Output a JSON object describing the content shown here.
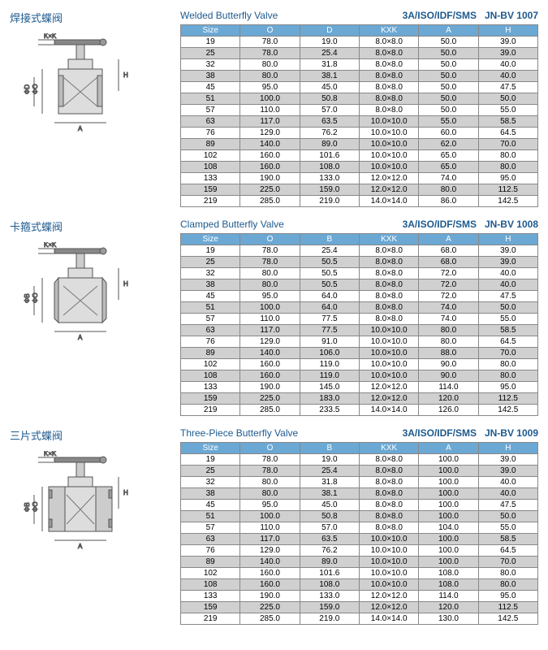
{
  "sections": [
    {
      "cn_title": "焊接式蝶阀",
      "en_title": "Welded Butterfly Valve",
      "std": "3A/ISO/IDF/SMS",
      "code": "JN-BV 1007",
      "diagram_type": "welded",
      "headers": [
        "Size",
        "O",
        "D",
        "KXK",
        "A",
        "H"
      ],
      "rows": [
        [
          "19",
          "78.0",
          "19.0",
          "8.0×8.0",
          "50.0",
          "39.0"
        ],
        [
          "25",
          "78.0",
          "25.4",
          "8.0×8.0",
          "50.0",
          "39.0"
        ],
        [
          "32",
          "80.0",
          "31.8",
          "8.0×8.0",
          "50.0",
          "40.0"
        ],
        [
          "38",
          "80.0",
          "38.1",
          "8.0×8.0",
          "50.0",
          "40.0"
        ],
        [
          "45",
          "95.0",
          "45.0",
          "8.0×8.0",
          "50.0",
          "47.5"
        ],
        [
          "51",
          "100.0",
          "50.8",
          "8.0×8.0",
          "50.0",
          "50.0"
        ],
        [
          "57",
          "110.0",
          "57.0",
          "8.0×8.0",
          "50.0",
          "55.0"
        ],
        [
          "63",
          "117.0",
          "63.5",
          "10.0×10.0",
          "55.0",
          "58.5"
        ],
        [
          "76",
          "129.0",
          "76.2",
          "10.0×10.0",
          "60.0",
          "64.5"
        ],
        [
          "89",
          "140.0",
          "89.0",
          "10.0×10.0",
          "62.0",
          "70.0"
        ],
        [
          "102",
          "160.0",
          "101.6",
          "10.0×10.0",
          "65.0",
          "80.0"
        ],
        [
          "108",
          "160.0",
          "108.0",
          "10.0×10.0",
          "65.0",
          "80.0"
        ],
        [
          "133",
          "190.0",
          "133.0",
          "12.0×12.0",
          "74.0",
          "95.0"
        ],
        [
          "159",
          "225.0",
          "159.0",
          "12.0×12.0",
          "80.0",
          "112.5"
        ],
        [
          "219",
          "285.0",
          "219.0",
          "14.0×14.0",
          "86.0",
          "142.5"
        ]
      ]
    },
    {
      "cn_title": "卡箍式蝶阀",
      "en_title": "Clamped Butterfly Valve",
      "std": "3A/ISO/IDF/SMS",
      "code": "JN-BV 1008",
      "diagram_type": "clamped",
      "headers": [
        "Size",
        "O",
        "B",
        "KXK",
        "A",
        "H"
      ],
      "rows": [
        [
          "19",
          "78.0",
          "25.4",
          "8.0×8.0",
          "68.0",
          "39.0"
        ],
        [
          "25",
          "78.0",
          "50.5",
          "8.0×8.0",
          "68.0",
          "39.0"
        ],
        [
          "32",
          "80.0",
          "50.5",
          "8.0×8.0",
          "72.0",
          "40.0"
        ],
        [
          "38",
          "80.0",
          "50.5",
          "8.0×8.0",
          "72.0",
          "40.0"
        ],
        [
          "45",
          "95.0",
          "64.0",
          "8.0×8.0",
          "72.0",
          "47.5"
        ],
        [
          "51",
          "100.0",
          "64.0",
          "8.0×8.0",
          "74.0",
          "50.0"
        ],
        [
          "57",
          "110.0",
          "77.5",
          "8.0×8.0",
          "74.0",
          "55.0"
        ],
        [
          "63",
          "117.0",
          "77.5",
          "10.0×10.0",
          "80.0",
          "58.5"
        ],
        [
          "76",
          "129.0",
          "91.0",
          "10.0×10.0",
          "80.0",
          "64.5"
        ],
        [
          "89",
          "140.0",
          "106.0",
          "10.0×10.0",
          "88.0",
          "70.0"
        ],
        [
          "102",
          "160.0",
          "119.0",
          "10.0×10.0",
          "90.0",
          "80.0"
        ],
        [
          "108",
          "160.0",
          "119.0",
          "10.0×10.0",
          "90.0",
          "80.0"
        ],
        [
          "133",
          "190.0",
          "145.0",
          "12.0×12.0",
          "114.0",
          "95.0"
        ],
        [
          "159",
          "225.0",
          "183.0",
          "12.0×12.0",
          "120.0",
          "112.5"
        ],
        [
          "219",
          "285.0",
          "233.5",
          "14.0×14.0",
          "126.0",
          "142.5"
        ]
      ]
    },
    {
      "cn_title": "三片式蝶阀",
      "en_title": "Three-Piece Butterfly Valve",
      "std": "3A/ISO/IDF/SMS",
      "code": "JN-BV 1009",
      "diagram_type": "threepiece",
      "headers": [
        "Size",
        "O",
        "B",
        "KXK",
        "A",
        "H"
      ],
      "rows": [
        [
          "19",
          "78.0",
          "19.0",
          "8.0×8.0",
          "100.0",
          "39.0"
        ],
        [
          "25",
          "78.0",
          "25.4",
          "8.0×8.0",
          "100.0",
          "39.0"
        ],
        [
          "32",
          "80.0",
          "31.8",
          "8.0×8.0",
          "100.0",
          "40.0"
        ],
        [
          "38",
          "80.0",
          "38.1",
          "8.0×8.0",
          "100.0",
          "40.0"
        ],
        [
          "45",
          "95.0",
          "45.0",
          "8.0×8.0",
          "100.0",
          "47.5"
        ],
        [
          "51",
          "100.0",
          "50.8",
          "8.0×8.0",
          "100.0",
          "50.0"
        ],
        [
          "57",
          "110.0",
          "57.0",
          "8.0×8.0",
          "104.0",
          "55.0"
        ],
        [
          "63",
          "117.0",
          "63.5",
          "10.0×10.0",
          "100.0",
          "58.5"
        ],
        [
          "76",
          "129.0",
          "76.2",
          "10.0×10.0",
          "100.0",
          "64.5"
        ],
        [
          "89",
          "140.0",
          "89.0",
          "10.0×10.0",
          "100.0",
          "70.0"
        ],
        [
          "102",
          "160.0",
          "101.6",
          "10.0×10.0",
          "108.0",
          "80.0"
        ],
        [
          "108",
          "160.0",
          "108.0",
          "10.0×10.0",
          "108.0",
          "80.0"
        ],
        [
          "133",
          "190.0",
          "133.0",
          "12.0×12.0",
          "114.0",
          "95.0"
        ],
        [
          "159",
          "225.0",
          "159.0",
          "12.0×12.0",
          "120.0",
          "112.5"
        ],
        [
          "219",
          "285.0",
          "219.0",
          "14.0×14.0",
          "130.0",
          "142.5"
        ]
      ]
    }
  ],
  "colors": {
    "header_bg": "#6ba8d4",
    "alt_row": "#d0d0d0",
    "title": "#1e5a8e",
    "border": "#888888"
  }
}
